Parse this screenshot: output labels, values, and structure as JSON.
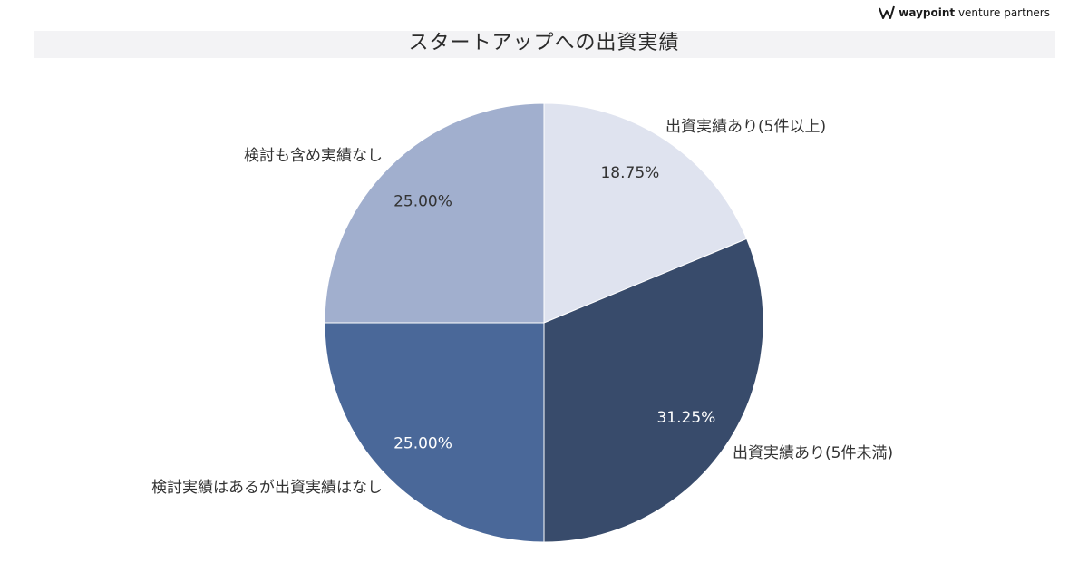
{
  "logo": {
    "name_bold": "waypoint",
    "name_rest": " venture partners"
  },
  "chart_data": {
    "type": "pie",
    "title": "スタートアップへの出資実績",
    "slices": [
      {
        "label": "出資実績あり(5件以上)",
        "value": 18.75,
        "value_label": "18.75%",
        "color": "#dfe3ef",
        "text_color": "#333333"
      },
      {
        "label": "出資実績あり(5件未満)",
        "value": 31.25,
        "value_label": "31.25%",
        "color": "#384b6b",
        "text_color": "#ffffff"
      },
      {
        "label": "検討実績はあるが出資実績はなし",
        "value": 25.0,
        "value_label": "25.00%",
        "color": "#4a6899",
        "text_color": "#ffffff"
      },
      {
        "label": "検討も含め実績なし",
        "value": 25.0,
        "value_label": "25.00%",
        "color": "#a1afce",
        "text_color": "#333333"
      }
    ],
    "start_angle": "12 o'clock",
    "direction": "clockwise",
    "legend": "none"
  }
}
